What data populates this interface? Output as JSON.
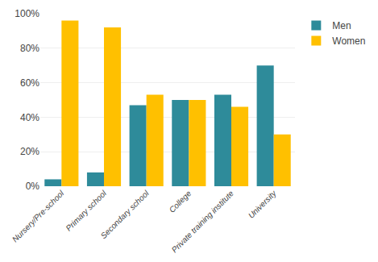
{
  "chart_data": {
    "type": "bar",
    "categories": [
      "Nursery/Pre-school",
      "Primary school",
      "Secondary school",
      "College",
      "Private training institute",
      "University"
    ],
    "series": [
      {
        "name": "Men",
        "color": "#2E8B9A",
        "values": [
          4,
          8,
          47,
          50,
          53,
          70
        ]
      },
      {
        "name": "Women",
        "color": "#FFC000",
        "values": [
          96,
          92,
          53,
          50,
          46,
          30
        ]
      }
    ],
    "ylim": [
      0,
      100
    ],
    "yticks": [
      {
        "value": 0,
        "label": "0%"
      },
      {
        "value": 20,
        "label": "20%"
      },
      {
        "value": 40,
        "label": "40%"
      },
      {
        "value": 60,
        "label": "60%"
      },
      {
        "value": 80,
        "label": "80%"
      },
      {
        "value": 100,
        "label": "100%"
      }
    ],
    "grid": true,
    "legend": "right"
  }
}
